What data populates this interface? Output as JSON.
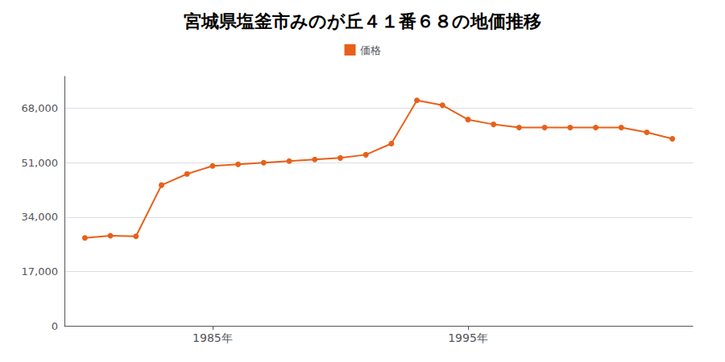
{
  "chart_data": {
    "type": "line",
    "title": "宮城県塩釜市みのが丘４１番６８の地価推移",
    "x": [
      1980,
      1981,
      1982,
      1983,
      1984,
      1985,
      1986,
      1987,
      1988,
      1989,
      1990,
      1991,
      1992,
      1993,
      1994,
      1995,
      1996,
      1997,
      1998,
      1999,
      2000,
      2001,
      2002,
      2003
    ],
    "series": [
      {
        "name": "価格",
        "color": "#e8601a",
        "values": [
          27500,
          28200,
          28000,
          44000,
          47500,
          50000,
          50500,
          51000,
          51500,
          52000,
          52500,
          53500,
          57000,
          70500,
          69000,
          64500,
          63000,
          62000,
          62000,
          62000,
          62000,
          62000,
          60500,
          58500
        ]
      }
    ],
    "xlim": [
      1979.2,
      2003.8
    ],
    "xticks": [
      {
        "value": 1985,
        "label": "1985年"
      },
      {
        "value": 1995,
        "label": "1995年"
      }
    ],
    "ylim": [
      0,
      78000
    ],
    "yticks": [
      0,
      {
        "value": 17000,
        "label": "17,000"
      },
      {
        "value": 34000,
        "label": "34,000"
      },
      {
        "value": 51000,
        "label": "51,000"
      },
      {
        "value": 68000,
        "label": "68,000"
      }
    ],
    "grid": "y",
    "legend": "top",
    "marker": "circle"
  }
}
